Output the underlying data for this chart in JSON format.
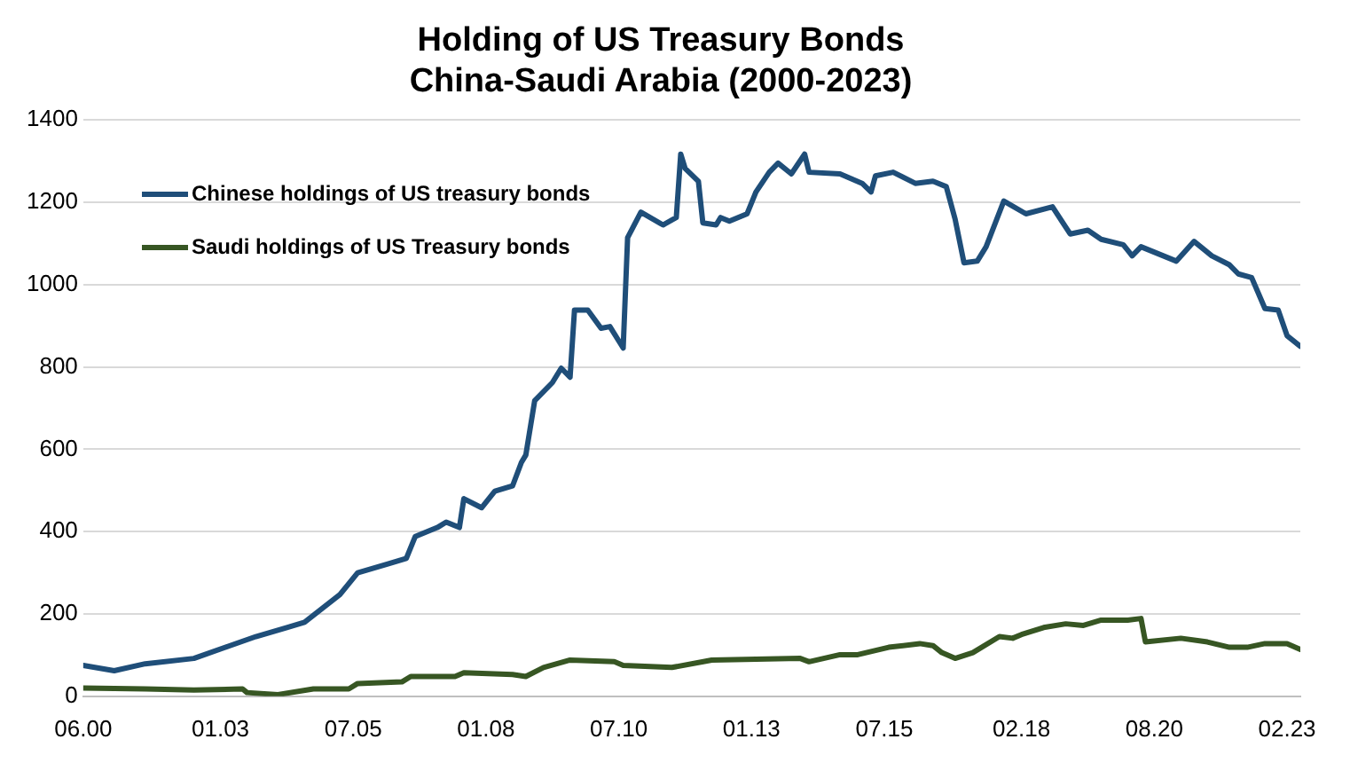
{
  "chart_data": {
    "type": "line",
    "title": "Holding of US Treasury Bonds\nChina-Saudi Arabia (2000-2023)",
    "xlim": [
      "2000-06",
      "2023-05"
    ],
    "xticks": [
      {
        "value": "2000-06",
        "label": "06.00"
      },
      {
        "value": "2003-01",
        "label": "01.03"
      },
      {
        "value": "2005-07",
        "label": "07.05"
      },
      {
        "value": "2008-01",
        "label": "01.08"
      },
      {
        "value": "2010-07",
        "label": "07.10"
      },
      {
        "value": "2013-01",
        "label": "01.13"
      },
      {
        "value": "2015-07",
        "label": "07.15"
      },
      {
        "value": "2018-02",
        "label": "02.18"
      },
      {
        "value": "2020-08",
        "label": "08.20"
      },
      {
        "value": "2023-02",
        "label": "02.23"
      }
    ],
    "ylim": [
      0,
      1400
    ],
    "yticks": [
      0,
      200,
      400,
      600,
      800,
      1000,
      1200,
      1400
    ],
    "grid": "y",
    "legend": "top left",
    "marker": "none",
    "line_style": "solid",
    "series": [
      {
        "name": "Chinese holdings of US treasury bonds",
        "color": "#1f4e79",
        "x": [
          "2000-06",
          "2001-01",
          "2001-08",
          "2002-07",
          "2003-09",
          "2004-04",
          "2004-08",
          "2005-04",
          "2005-08",
          "2006-03",
          "2006-07",
          "2006-09",
          "2007-02",
          "2007-04",
          "2007-07",
          "2007-08",
          "2007-12",
          "2008-03",
          "2008-07",
          "2008-09",
          "2008-10",
          "2008-12",
          "2009-04",
          "2009-06",
          "2009-08",
          "2009-09",
          "2009-12",
          "2010-03",
          "2010-05",
          "2010-08",
          "2010-09",
          "2010-12",
          "2011-05",
          "2011-08",
          "2011-09",
          "2011-10",
          "2012-01",
          "2012-02",
          "2012-05",
          "2012-06",
          "2012-08",
          "2012-12",
          "2013-02",
          "2013-05",
          "2013-07",
          "2013-10",
          "2014-01",
          "2014-02",
          "2014-09",
          "2015-02",
          "2015-04",
          "2015-05",
          "2015-09",
          "2016-02",
          "2016-06",
          "2016-09",
          "2016-11",
          "2017-01",
          "2017-04",
          "2017-06",
          "2017-10",
          "2018-03",
          "2018-09",
          "2019-01",
          "2019-05",
          "2019-08",
          "2020-01",
          "2020-03",
          "2020-05",
          "2021-01",
          "2021-05",
          "2021-09",
          "2022-01",
          "2022-03",
          "2022-06",
          "2022-09",
          "2022-12",
          "2023-02",
          "2023-05"
        ],
        "values": [
          75,
          62,
          79,
          92,
          145,
          167,
          180,
          247,
          300,
          322,
          335,
          388,
          410,
          423,
          410,
          480,
          458,
          498,
          511,
          568,
          586,
          718,
          762,
          797,
          775,
          938,
          938,
          894,
          898,
          846,
          1114,
          1176,
          1145,
          1163,
          1317,
          1282,
          1251,
          1150,
          1145,
          1163,
          1154,
          1172,
          1225,
          1273,
          1295,
          1269,
          1317,
          1273,
          1269,
          1246,
          1225,
          1264,
          1273,
          1246,
          1251,
          1238,
          1159,
          1053,
          1057,
          1092,
          1203,
          1172,
          1189,
          1123,
          1132,
          1110,
          1097,
          1070,
          1092,
          1057,
          1105,
          1070,
          1048,
          1026,
          1017,
          942,
          938,
          876,
          850
        ]
      },
      {
        "name": "Saudi holdings of US Treasury bonds",
        "color": "#375623",
        "x": [
          "2000-06",
          "2001-08",
          "2002-07",
          "2003-06",
          "2003-07",
          "2004-02",
          "2004-10",
          "2005-06",
          "2005-08",
          "2006-06",
          "2006-08",
          "2007-06",
          "2007-08",
          "2008-07",
          "2008-10",
          "2009-02",
          "2009-08",
          "2010-06",
          "2010-08",
          "2011-07",
          "2012-04",
          "2013-12",
          "2014-02",
          "2014-09",
          "2015-01",
          "2015-08",
          "2016-03",
          "2016-06",
          "2016-08",
          "2016-11",
          "2017-03",
          "2017-09",
          "2017-12",
          "2018-02",
          "2018-07",
          "2018-12",
          "2019-04",
          "2019-08",
          "2020-02",
          "2020-05",
          "2020-06",
          "2021-02",
          "2021-08",
          "2022-01",
          "2022-05",
          "2022-09",
          "2023-02",
          "2023-05"
        ],
        "values": [
          20,
          18,
          15,
          18,
          9,
          4,
          18,
          18,
          31,
          35,
          48,
          48,
          57,
          53,
          48,
          70,
          88,
          84,
          75,
          70,
          88,
          92,
          84,
          101,
          101,
          119,
          128,
          123,
          106,
          92,
          106,
          145,
          141,
          150,
          167,
          176,
          172,
          185,
          185,
          189,
          132,
          141,
          132,
          119,
          119,
          128,
          128,
          114
        ]
      }
    ]
  }
}
